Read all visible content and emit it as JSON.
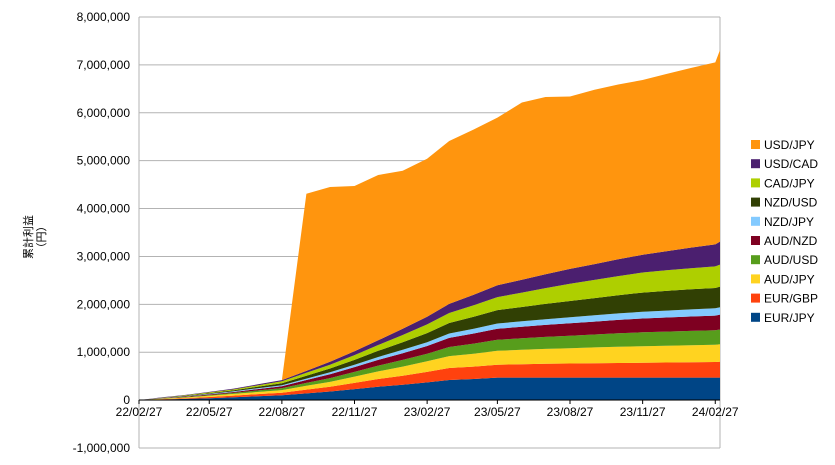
{
  "chart_data": {
    "type": "area",
    "stacked": true,
    "ylabel_lines": [
      "累計利益",
      "（円）"
    ],
    "ylim": [
      -1000000,
      8000000
    ],
    "y_tick_values": [
      -1000000,
      0,
      1000000,
      2000000,
      3000000,
      4000000,
      5000000,
      6000000,
      7000000,
      8000000
    ],
    "y_tick_labels": [
      "-1,000,000",
      "0",
      "1,000,000",
      "2,000,000",
      "3,000,000",
      "4,000,000",
      "5,000,000",
      "6,000,000",
      "7,000,000",
      "8,000,000"
    ],
    "x_tick_labels": [
      "22/02/27",
      "22/05/27",
      "22/08/27",
      "22/11/27",
      "23/02/27",
      "23/05/27",
      "23/08/27",
      "23/11/27",
      "24/02/27"
    ],
    "x": [
      "22/02/27",
      "22/03/27",
      "22/04/27",
      "22/05/27",
      "22/06/27",
      "22/07/27",
      "22/08/27",
      "22/09/27",
      "22/10/27",
      "22/11/27",
      "22/12/27",
      "23/01/27",
      "23/02/27",
      "23/03/27",
      "23/04/27",
      "23/05/27",
      "23/06/27",
      "23/07/27",
      "23/08/27",
      "23/09/27",
      "23/10/27",
      "23/11/27",
      "23/12/27",
      "24/01/27",
      "24/02/27",
      "24/03/04"
    ],
    "grid": true,
    "legend_position": "right",
    "series": [
      {
        "name": "EUR/JPY",
        "color": "#004586",
        "values": [
          0,
          12000,
          25000,
          40000,
          60000,
          80000,
          100000,
          140000,
          180000,
          230000,
          280000,
          320000,
          370000,
          420000,
          440000,
          470000,
          470000,
          470000,
          470000,
          470000,
          470000,
          470000,
          470000,
          470000,
          470000,
          470000
        ]
      },
      {
        "name": "EUR/GBP",
        "color": "#ff420e",
        "values": [
          0,
          8000,
          15000,
          25000,
          35000,
          45000,
          55000,
          80000,
          100000,
          130000,
          160000,
          190000,
          220000,
          250000,
          260000,
          270000,
          280000,
          290000,
          295000,
          300000,
          305000,
          310000,
          315000,
          320000,
          325000,
          330000
        ]
      },
      {
        "name": "AUD/JPY",
        "color": "#ffd320",
        "values": [
          0,
          8000,
          15000,
          25000,
          35000,
          45000,
          55000,
          80000,
          100000,
          130000,
          160000,
          190000,
          220000,
          250000,
          270000,
          290000,
          300000,
          310000,
          320000,
          330000,
          340000,
          345000,
          350000,
          355000,
          360000,
          365000
        ]
      },
      {
        "name": "AUD/USD",
        "color": "#579d1c",
        "values": [
          0,
          5000,
          10000,
          15000,
          20000,
          30000,
          40000,
          60000,
          80000,
          100000,
          120000,
          140000,
          160000,
          190000,
          210000,
          230000,
          240000,
          250000,
          260000,
          270000,
          280000,
          290000,
          295000,
          300000,
          305000,
          310000
        ]
      },
      {
        "name": "AUD/NZD",
        "color": "#7e0021",
        "values": [
          0,
          5000,
          10000,
          15000,
          20000,
          30000,
          40000,
          60000,
          80000,
          100000,
          120000,
          140000,
          160000,
          190000,
          210000,
          230000,
          240000,
          250000,
          260000,
          270000,
          280000,
          290000,
          295000,
          300000,
          305000,
          310000
        ]
      },
      {
        "name": "NZD/JPY",
        "color": "#83caff",
        "values": [
          0,
          3000,
          6000,
          10000,
          14000,
          18000,
          22000,
          30000,
          40000,
          50000,
          60000,
          70000,
          80000,
          90000,
          100000,
          110000,
          115000,
          120000,
          125000,
          130000,
          135000,
          140000,
          145000,
          150000,
          152000,
          155000
        ]
      },
      {
        "name": "NZD/USD",
        "color": "#314004",
        "values": [
          0,
          5000,
          10000,
          15000,
          20000,
          30000,
          40000,
          60000,
          80000,
          100000,
          130000,
          160000,
          190000,
          220000,
          250000,
          280000,
          300000,
          320000,
          340000,
          360000,
          380000,
          400000,
          410000,
          420000,
          425000,
          430000
        ]
      },
      {
        "name": "CAD/JPY",
        "color": "#aecf00",
        "values": [
          0,
          5000,
          10000,
          15000,
          20000,
          30000,
          40000,
          60000,
          80000,
          100000,
          120000,
          150000,
          180000,
          210000,
          240000,
          270000,
          300000,
          330000,
          360000,
          380000,
          400000,
          420000,
          430000,
          440000,
          450000,
          460000
        ]
      },
      {
        "name": "USD/CAD",
        "color": "#4b1f6f",
        "values": [
          0,
          5000,
          8000,
          12000,
          16000,
          20000,
          25000,
          40000,
          60000,
          80000,
          100000,
          130000,
          160000,
          190000,
          220000,
          250000,
          270000,
          290000,
          310000,
          330000,
          350000,
          370000,
          400000,
          430000,
          460000,
          480000
        ]
      },
      {
        "name": "USD/JPY",
        "color": "#ff950e",
        "values": [
          0,
          0,
          0,
          0,
          0,
          0,
          0,
          3700000,
          3650000,
          3450000,
          3450000,
          3300000,
          3300000,
          3400000,
          3450000,
          3500000,
          3700000,
          3700000,
          3600000,
          3640000,
          3650000,
          3650000,
          3700000,
          3750000,
          3800000,
          4000000
        ]
      }
    ]
  }
}
